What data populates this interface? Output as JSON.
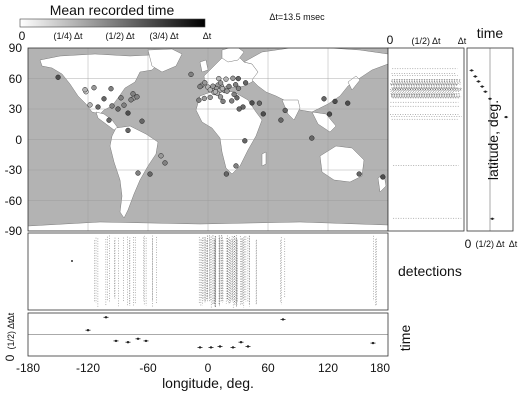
{
  "header": {
    "colorbar_title": "Mean recorded time",
    "colorbar_ticks": [
      "0",
      "(1/4) Δt",
      "(1/2) Δt",
      "(3/4) Δt",
      "Δt"
    ],
    "delta_note": "Δt=13.5 msec"
  },
  "chart_data": [
    {
      "id": "world-map",
      "type": "scatter",
      "xlabel": "",
      "ylabel": "",
      "xlim": [
        -180,
        180
      ],
      "ylim": [
        -90,
        90
      ],
      "yticks": [
        "90",
        "60",
        "30",
        "0",
        "-30",
        "-60",
        "-90"
      ],
      "grid": true,
      "background": "#b3b3b3",
      "land_color": "#ffffff",
      "points_lonlat_t": [
        [
          -122,
          47,
          0.2
        ],
        [
          -118,
          34,
          0.3
        ],
        [
          -104,
          40,
          0.6
        ],
        [
          -87,
          41,
          0.5
        ],
        [
          -80,
          26,
          0.7
        ],
        [
          -74,
          41,
          0.4
        ],
        [
          -75,
          45,
          0.5
        ],
        [
          -71,
          42,
          0.5
        ],
        [
          -99,
          19,
          0.6
        ],
        [
          -43,
          -23,
          0.5
        ],
        [
          -58,
          -34,
          0.6
        ],
        [
          -70,
          -33,
          0.5
        ],
        [
          -47,
          -16,
          0.4
        ],
        [
          -77,
          39,
          0.5
        ],
        [
          -96,
          33,
          0.5
        ],
        [
          -0.1,
          51.5,
          0.3
        ],
        [
          2.3,
          48.9,
          0.3
        ],
        [
          4.9,
          52.4,
          0.4
        ],
        [
          13.4,
          52.5,
          0.3
        ],
        [
          10,
          53.5,
          0.4
        ],
        [
          8.7,
          50.1,
          0.4
        ],
        [
          11.6,
          48.1,
          0.3
        ],
        [
          16.4,
          48.2,
          0.4
        ],
        [
          14.4,
          50.1,
          0.3
        ],
        [
          21,
          52.2,
          0.5
        ],
        [
          18,
          59.3,
          0.3
        ],
        [
          24.9,
          60.2,
          0.4
        ],
        [
          10.8,
          59.9,
          0.3
        ],
        [
          12.6,
          55.7,
          0.4
        ],
        [
          30.3,
          59.9,
          0.6
        ],
        [
          37.6,
          55.8,
          0.6
        ],
        [
          -3.7,
          40.4,
          0.4
        ],
        [
          -9.1,
          38.7,
          0.5
        ],
        [
          12.5,
          41.9,
          0.4
        ],
        [
          9.2,
          45.5,
          0.3
        ],
        [
          23.7,
          38,
          0.5
        ],
        [
          28.9,
          41,
          0.6
        ],
        [
          19,
          47.5,
          0.4
        ],
        [
          26.1,
          44.4,
          0.5
        ],
        [
          -6.3,
          53.3,
          0.4
        ],
        [
          -3.2,
          55.9,
          0.4
        ],
        [
          6.1,
          46.2,
          0.3
        ],
        [
          7.4,
          46.9,
          0.3
        ],
        [
          30.5,
          50.4,
          0.5
        ],
        [
          27.6,
          53.9,
          0.5
        ],
        [
          -8,
          52,
          0.5
        ],
        [
          2.2,
          41.4,
          0.4
        ],
        [
          15,
          37.5,
          0.5
        ],
        [
          35,
          32,
          0.6
        ],
        [
          44,
          36,
          0.7
        ],
        [
          51.4,
          35.7,
          0.6
        ],
        [
          55.3,
          25.2,
          0.7
        ],
        [
          72.9,
          19.1,
          0.6
        ],
        [
          77.2,
          28.6,
          0.6
        ],
        [
          -17,
          64,
          0.5
        ],
        [
          103.8,
          1.35,
          0.6
        ],
        [
          121.5,
          25,
          0.7
        ],
        [
          139.7,
          35.7,
          0.7
        ],
        [
          151.2,
          -33.9,
          0.6
        ],
        [
          174.8,
          -36.9,
          0.7
        ],
        [
          28,
          -26,
          0.5
        ],
        [
          18.4,
          -33.9,
          0.6
        ],
        [
          36.8,
          -1.3,
          0.6
        ],
        [
          31.2,
          30,
          0.6
        ],
        [
          -110,
          32,
          0.6
        ],
        [
          -84,
          33.7,
          0.5
        ],
        [
          -90,
          30,
          0.6
        ],
        [
          -123,
          49,
          0.3
        ],
        [
          -114,
          51,
          0.4
        ],
        [
          -97,
          50,
          0.5
        ],
        [
          -66,
          18,
          0.6
        ],
        [
          -80,
          9,
          0.6
        ],
        [
          -149.9,
          61.2,
          0.7
        ],
        [
          116,
          40,
          0.6
        ],
        [
          127,
          37.5,
          0.7
        ]
      ]
    },
    {
      "id": "detections-panel",
      "type": "scatter",
      "ylabel": "detections",
      "xlim": [
        -180,
        180
      ],
      "cluster_centers": [
        -110,
        -100,
        -90,
        -82,
        -75,
        -65,
        -55,
        -5,
        0,
        5,
        10,
        15,
        20,
        25,
        30,
        38,
        45,
        75,
        165
      ]
    },
    {
      "id": "time-vs-longitude",
      "type": "scatter",
      "ylabel": "time",
      "xlabel": "longitude, deg.",
      "xlim": [
        -180,
        180
      ],
      "ylim": [
        0,
        1
      ],
      "xticks": [
        "-180",
        "-120",
        "-60",
        "0",
        "60",
        "120",
        "180"
      ],
      "yticks": [
        "0",
        "(1/2) Δt",
        "Δt"
      ],
      "points": [
        [
          -120,
          0.6
        ],
        [
          -102,
          0.9
        ],
        [
          -92,
          0.35
        ],
        [
          -80,
          0.32
        ],
        [
          -70,
          0.4
        ],
        [
          -62,
          0.35
        ],
        [
          -8,
          0.2
        ],
        [
          3,
          0.2
        ],
        [
          12,
          0.22
        ],
        [
          25,
          0.2
        ],
        [
          33,
          0.32
        ],
        [
          40,
          0.22
        ],
        [
          75,
          0.85
        ],
        [
          165,
          0.3
        ]
      ]
    },
    {
      "id": "latitude-detections",
      "type": "scatter",
      "xlim": [
        0,
        1
      ],
      "ylim": [
        -90,
        90
      ],
      "xticks": [
        "0",
        "(1/2) Δt",
        "Δt"
      ]
    },
    {
      "id": "time-vs-latitude",
      "type": "scatter",
      "title": "time",
      "ylabel": "latitude, deg.",
      "xlim": [
        0,
        1
      ],
      "ylim": [
        -90,
        90
      ],
      "xticks": [
        "0",
        "(1/2) Δt",
        "Δt"
      ],
      "points": [
        [
          0.1,
          68
        ],
        [
          0.18,
          62
        ],
        [
          0.25,
          57
        ],
        [
          0.33,
          52
        ],
        [
          0.4,
          47
        ],
        [
          0.5,
          40
        ],
        [
          0.85,
          22
        ],
        [
          0.6,
          -24
        ],
        [
          0.55,
          -78
        ]
      ]
    }
  ]
}
